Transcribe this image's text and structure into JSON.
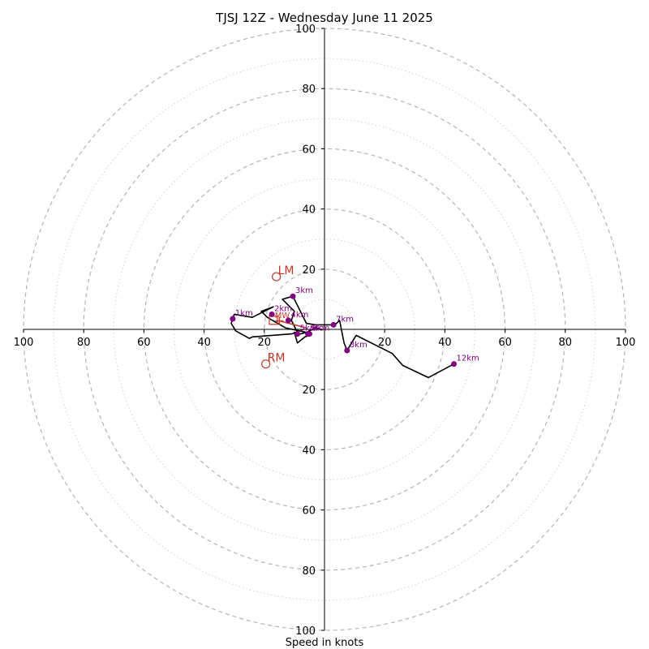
{
  "chart_data": {
    "type": "line",
    "title": "TJSJ 12Z - Wednesday June 11 2025",
    "xlabel": "Speed in knots",
    "range": [
      -100,
      100
    ],
    "major_rings": [
      20,
      40,
      60,
      80,
      100
    ],
    "minor_rings": [
      10,
      30,
      50,
      70,
      90
    ],
    "x_ticks": [
      "100",
      "80",
      "60",
      "40",
      "20",
      "20",
      "40",
      "60",
      "80",
      "100"
    ],
    "x_tick_values": [
      -100,
      -80,
      -60,
      -40,
      -20,
      20,
      40,
      60,
      80,
      100
    ],
    "y_ticks": [
      "100",
      "80",
      "60",
      "40",
      "20",
      "20",
      "40",
      "60",
      "80",
      "100"
    ],
    "y_tick_values": [
      100,
      80,
      60,
      40,
      20,
      -20,
      -40,
      -60,
      -80,
      -100
    ],
    "grid": true,
    "trace_color": "#000000",
    "trace": [
      {
        "u": -1,
        "v": 0
      },
      {
        "u": -3,
        "v": 0.5
      },
      {
        "u": -6,
        "v": -1
      },
      {
        "u": -8,
        "v": -1.5
      },
      {
        "u": -10,
        "v": -1
      },
      {
        "u": -9,
        "v": -4.5
      },
      {
        "u": -6.5,
        "v": -2.5
      },
      {
        "u": -5,
        "v": -2
      },
      {
        "u": -6,
        "v": -1
      },
      {
        "u": -13,
        "v": 0.5
      },
      {
        "u": -19,
        "v": 4
      },
      {
        "u": -21,
        "v": 6
      },
      {
        "u": -17,
        "v": 7.5
      },
      {
        "u": -24,
        "v": 4
      },
      {
        "u": -30,
        "v": 5
      },
      {
        "u": -31,
        "v": 2
      },
      {
        "u": -29.5,
        "v": -0.5
      },
      {
        "u": -25,
        "v": -3
      },
      {
        "u": -24,
        "v": -2.5
      },
      {
        "u": -11,
        "v": -1.5
      },
      {
        "u": -9,
        "v": -1
      },
      {
        "u": -11,
        "v": 3
      },
      {
        "u": -10,
        "v": 6
      },
      {
        "u": -12,
        "v": 8
      },
      {
        "u": -14,
        "v": 10
      },
      {
        "u": -10.5,
        "v": 11
      },
      {
        "u": -6,
        "v": 2
      },
      {
        "u": -3,
        "v": 1.5
      },
      {
        "u": 3.5,
        "v": 1.5
      },
      {
        "u": 5,
        "v": 3
      },
      {
        "u": 6.5,
        "v": -4.5
      },
      {
        "u": 7.5,
        "v": -7
      },
      {
        "u": 10.5,
        "v": -2
      },
      {
        "u": 22.5,
        "v": -8
      },
      {
        "u": 26,
        "v": -12
      },
      {
        "u": 34.5,
        "v": -16
      },
      {
        "u": 43,
        "v": -11.5
      }
    ],
    "height_markers_color": "#800080",
    "height_markers": [
      {
        "label": "Sfc",
        "u": -5.5,
        "v": -1.5
      },
      {
        "label": "1km",
        "u": -30.5,
        "v": 3.5
      },
      {
        "label": "2km",
        "u": -17.5,
        "v": 5
      },
      {
        "label": "3km",
        "u": -10.5,
        "v": 11
      },
      {
        "label": "4km",
        "u": -12,
        "v": 3
      },
      {
        "label": "5km",
        "u": -9,
        "v": -1.5
      },
      {
        "label": "6km",
        "u": -5,
        "v": -1.5
      },
      {
        "label": "7km",
        "u": 3,
        "v": 1.5
      },
      {
        "label": "8km",
        "u": 7.5,
        "v": -7
      },
      {
        "label": "12km",
        "u": 43,
        "v": -11.5
      }
    ],
    "motion_color": "#c0392b",
    "storm_motions": [
      {
        "label": "LM",
        "u": -16,
        "v": 17.5
      },
      {
        "label": "RM",
        "u": -19.5,
        "v": -11.5
      }
    ],
    "mean_wind": {
      "label": "MW",
      "u": -16.5,
      "v": 3
    },
    "bunkers_marker": {
      "u": -17,
      "v": 3
    },
    "shear_vector": [
      {
        "u": -15,
        "v": 2.8
      },
      {
        "u": -6,
        "v": 0.5
      }
    ]
  }
}
